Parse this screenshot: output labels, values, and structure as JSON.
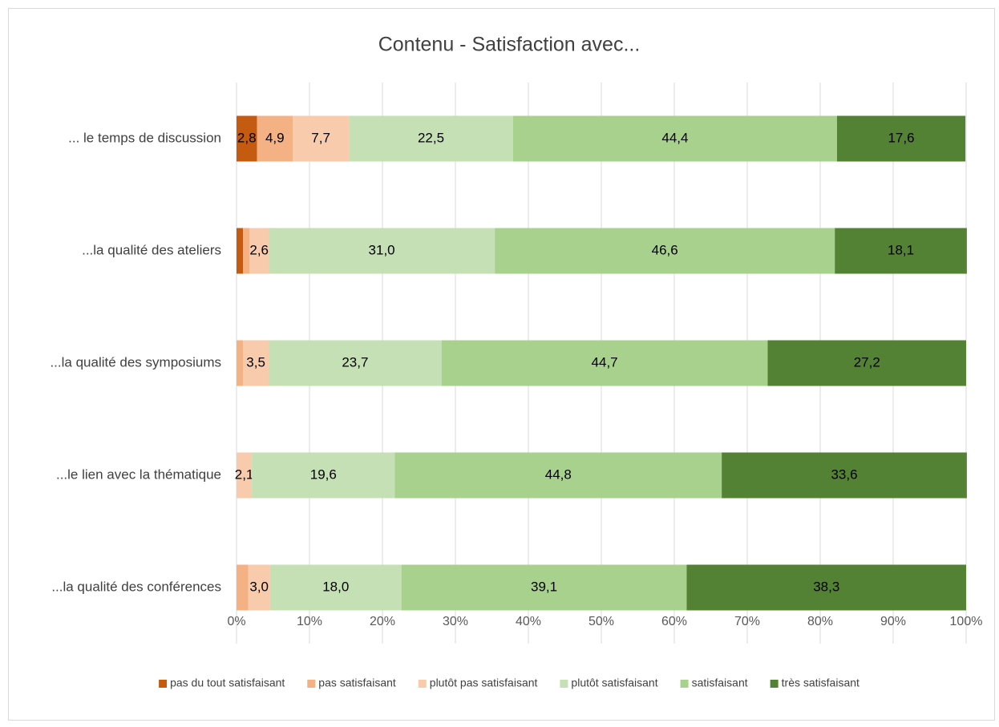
{
  "chart_data": {
    "type": "stacked_barh",
    "title": "Contenu - Satisfaction avec...",
    "categories": [
      "... le temps de discussion",
      "...la qualité des ateliers",
      "...la qualité des symposiums",
      "...le lien avec la thématique",
      "...la qualité des conférences"
    ],
    "series": [
      {
        "name": "pas du tout satisfaisant",
        "color": "#c55a11",
        "values": [
          2.8,
          0.9,
          0,
          0,
          0
        ],
        "value_labels": [
          "2,8",
          null,
          null,
          null,
          null
        ]
      },
      {
        "name": "pas satisfaisant",
        "color": "#f4b183",
        "values": [
          4.9,
          0.9,
          0.9,
          0,
          1.6
        ],
        "value_labels": [
          "4,9",
          null,
          null,
          null,
          null
        ]
      },
      {
        "name": "plutôt pas satisfaisant",
        "color": "#f8cbad",
        "values": [
          7.7,
          2.6,
          3.5,
          2.1,
          3.0
        ],
        "value_labels": [
          "7,7",
          "2,6",
          "3,5",
          "2,1",
          "3,0"
        ]
      },
      {
        "name": "plutôt satisfaisant",
        "color": "#c5e0b4",
        "values": [
          22.5,
          31.0,
          23.7,
          19.6,
          18.0
        ],
        "value_labels": [
          "22,5",
          "31,0",
          "23,7",
          "19,6",
          "18,0"
        ]
      },
      {
        "name": "satisfaisant",
        "color": "#a9d18e",
        "values": [
          44.4,
          46.6,
          44.7,
          44.8,
          39.1
        ],
        "value_labels": [
          "44,4",
          "46,6",
          "44,7",
          "44,8",
          "39,1"
        ]
      },
      {
        "name": "très satisfaisant",
        "color": "#548235",
        "values": [
          17.6,
          18.1,
          27.2,
          33.6,
          38.3
        ],
        "value_labels": [
          "17,6",
          "18,1",
          "27,2",
          "33,6",
          "38,3"
        ]
      }
    ],
    "xlim": [
      0,
      100
    ],
    "xticks": [
      {
        "value": 0,
        "label": "0%"
      },
      {
        "value": 10,
        "label": "10%"
      },
      {
        "value": 20,
        "label": "20%"
      },
      {
        "value": 30,
        "label": "30%"
      },
      {
        "value": 40,
        "label": "40%"
      },
      {
        "value": 50,
        "label": "50%"
      },
      {
        "value": 60,
        "label": "60%"
      },
      {
        "value": 70,
        "label": "70%"
      },
      {
        "value": 80,
        "label": "80%"
      },
      {
        "value": 90,
        "label": "90%"
      },
      {
        "value": 100,
        "label": "100%"
      }
    ],
    "grid": true,
    "legend": "bottom"
  }
}
